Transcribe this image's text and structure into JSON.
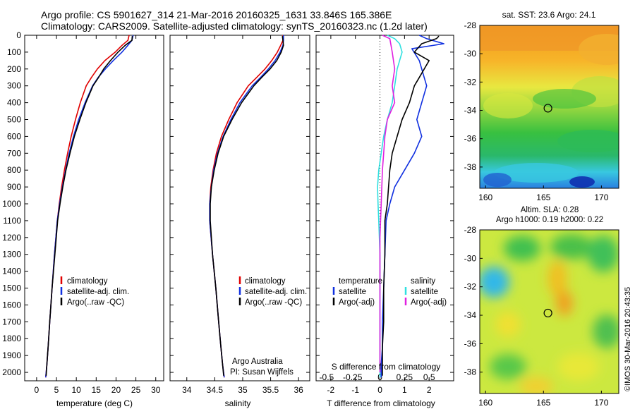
{
  "header": {
    "line1": "Argo profile: CS 5901627_314 21-Mar-2016 20160325_1631 33.846S 165.386E",
    "line2": "Climatology: CARS2009. Satellite-adjusted climatology: synTS_20160323.nc (1.2d later)"
  },
  "colors": {
    "climatology": "#e00000",
    "satellite": "#1030e0",
    "argo": "#000000",
    "salinity_satellite": "#30e0e0",
    "salinity_argo": "#e020e0"
  },
  "panels": {
    "temperature": {
      "xlabel": "temperature (deg C)",
      "legend": [
        "climatology",
        "satellite-adj. clim.",
        "Argo(..raw -QC)"
      ]
    },
    "salinity": {
      "xlabel": "salinity",
      "legend": [
        "climatology",
        "satellite-adj. clim.",
        "Argo(..raw -QC)"
      ],
      "credit1": "Argo Australia",
      "credit2": "PI: Susan Wijffels"
    },
    "difference": {
      "xlabel": "T difference from climatology",
      "top_label": "S difference from climatology",
      "legend_head_t": "temperature",
      "legend_head_s": "salinity",
      "legend_t": [
        "satellite",
        "Argo(-adj)"
      ],
      "legend_s": [
        "satellite",
        "Argo(-adj)"
      ]
    },
    "sst_map": {
      "title": "sat. SST: 23.6 Argo: 24.1"
    },
    "sla_map": {
      "title1": "Altim. SLA: 0.28",
      "title2": "Argo h1000: 0.19 h2000: 0.22"
    }
  },
  "stamp": "©IMOS 30-Mar-2016 20:43:35",
  "chart_data": [
    {
      "type": "line",
      "xlabel": "temperature (deg C)",
      "ylabel": "",
      "xlim": [
        -3,
        32
      ],
      "ylim": [
        2050,
        0
      ],
      "xticks": [
        0,
        5,
        10,
        15,
        20,
        25,
        30
      ],
      "yticks": [
        0,
        100,
        200,
        300,
        400,
        500,
        600,
        700,
        800,
        900,
        1000,
        1100,
        1200,
        1300,
        1400,
        1500,
        1600,
        1700,
        1800,
        1900,
        2000
      ],
      "series": [
        {
          "name": "climatology",
          "color": "#e00000",
          "x": [
            23.3,
            23.0,
            21.5,
            19.8,
            17.2,
            15.3,
            13.8,
            12.5,
            11.0,
            9.8,
            8.7,
            7.8,
            7.0,
            6.3,
            5.7,
            5.2,
            4.5,
            3.9,
            3.3,
            2.9,
            2.6,
            2.3
          ],
          "y": [
            0,
            30,
            60,
            100,
            150,
            200,
            250,
            300,
            400,
            500,
            600,
            700,
            800,
            900,
            1000,
            1100,
            1300,
            1500,
            1700,
            1850,
            1950,
            2030
          ]
        },
        {
          "name": "satellite-adj. clim.",
          "color": "#1030e0",
          "x": [
            24.3,
            24.0,
            23.0,
            21.5,
            19.3,
            17.3,
            15.5,
            14.1,
            12.2,
            10.6,
            9.3,
            8.2,
            7.3,
            6.5,
            5.8,
            5.2,
            4.5,
            3.9,
            3.3,
            2.9,
            2.6,
            2.3
          ],
          "y": [
            0,
            30,
            60,
            100,
            150,
            200,
            250,
            300,
            400,
            500,
            600,
            700,
            800,
            900,
            1000,
            1100,
            1300,
            1500,
            1700,
            1850,
            1950,
            2030
          ]
        },
        {
          "name": "Argo(..raw -QC)",
          "color": "#000000",
          "x": [
            24.1,
            24.0,
            22.3,
            20.5,
            18.6,
            16.9,
            15.6,
            14.2,
            12.4,
            10.9,
            9.5,
            8.4,
            7.4,
            6.6,
            5.9,
            5.3,
            4.6,
            3.9,
            3.3,
            2.9,
            2.6,
            2.4
          ],
          "y": [
            5,
            30,
            60,
            100,
            150,
            200,
            250,
            300,
            400,
            500,
            600,
            700,
            800,
            900,
            1000,
            1100,
            1300,
            1500,
            1700,
            1850,
            1950,
            2020
          ]
        }
      ]
    },
    {
      "type": "line",
      "xlabel": "salinity",
      "xlim": [
        33.7,
        36.2
      ],
      "ylim": [
        2050,
        0
      ],
      "xticks": [
        34,
        34.5,
        35,
        35.5,
        36
      ],
      "series": [
        {
          "name": "climatology",
          "color": "#e00000",
          "x": [
            35.72,
            35.72,
            35.68,
            35.62,
            35.52,
            35.4,
            35.25,
            35.1,
            34.9,
            34.75,
            34.62,
            34.53,
            34.47,
            34.43,
            34.41,
            34.41,
            34.46,
            34.52,
            34.57,
            34.61,
            34.64,
            34.67
          ],
          "y": [
            0,
            30,
            60,
            100,
            150,
            200,
            250,
            300,
            400,
            500,
            600,
            700,
            800,
            900,
            1000,
            1100,
            1300,
            1500,
            1700,
            1850,
            1950,
            2030
          ]
        },
        {
          "name": "satellite-adj. clim.",
          "color": "#1030e0",
          "x": [
            35.73,
            35.73,
            35.72,
            35.67,
            35.58,
            35.46,
            35.32,
            35.17,
            34.95,
            34.79,
            34.65,
            34.55,
            34.48,
            34.44,
            34.41,
            34.41,
            34.46,
            34.52,
            34.57,
            34.61,
            34.64,
            34.67
          ],
          "y": [
            0,
            30,
            60,
            100,
            150,
            200,
            250,
            300,
            400,
            500,
            600,
            700,
            800,
            900,
            1000,
            1100,
            1300,
            1500,
            1700,
            1850,
            1950,
            2030
          ]
        },
        {
          "name": "Argo(..raw -QC)",
          "color": "#000000",
          "x": [
            35.71,
            35.72,
            35.73,
            35.69,
            35.61,
            35.49,
            35.34,
            35.2,
            34.98,
            34.81,
            34.66,
            34.56,
            34.49,
            34.44,
            34.42,
            34.42,
            34.46,
            34.52,
            34.57,
            34.61,
            34.64,
            34.66
          ],
          "y": [
            5,
            30,
            60,
            100,
            150,
            200,
            250,
            300,
            400,
            500,
            600,
            700,
            800,
            900,
            1000,
            1100,
            1300,
            1500,
            1700,
            1850,
            1950,
            2020
          ]
        }
      ]
    },
    {
      "type": "line",
      "xlabel": "T difference from climatology",
      "xlim": [
        -2.6,
        3.0
      ],
      "ylim": [
        2050,
        0
      ],
      "xticks": [
        -2,
        -1,
        0,
        1,
        2
      ],
      "top_ticks": [
        "-0.5",
        "-0.25",
        "0",
        "0.25",
        "0.5"
      ],
      "series": [
        {
          "name": "satellite",
          "color": "#1030e0",
          "x": [
            1.6,
            1.9,
            2.6,
            1.3,
            1.6,
            1.8,
            1.9,
            1.7,
            1.5,
            1.7,
            1.4,
            1.0,
            0.6,
            0.4,
            0.25,
            0.2,
            0.15,
            0.1,
            0.1,
            0.05,
            0.05
          ],
          "y": [
            0,
            20,
            50,
            80,
            150,
            250,
            300,
            400,
            500,
            600,
            700,
            800,
            900,
            1000,
            1100,
            1300,
            1500,
            1700,
            1850,
            1950,
            2030
          ]
        },
        {
          "name": "Argo(-adj)",
          "color": "#000000",
          "x": [
            2.4,
            2.3,
            1.7,
            1.4,
            2.0,
            1.6,
            1.4,
            1.2,
            0.9,
            0.7,
            0.5,
            0.4,
            0.35,
            0.3,
            0.2,
            0.2,
            0.15,
            0.15,
            0.1,
            0.1
          ],
          "y": [
            5,
            20,
            50,
            100,
            150,
            250,
            300,
            400,
            500,
            600,
            700,
            800,
            900,
            1000,
            1100,
            1300,
            1500,
            1700,
            1850,
            2020
          ]
        },
        {
          "name": "salinity satellite",
          "color": "#30e0e0",
          "x": [
            0.3,
            0.6,
            0.8,
            0.9,
            0.7,
            0.6,
            0.5,
            0.3,
            0.15,
            0.05,
            -0.05,
            -0.1,
            -0.08,
            -0.05,
            0.0,
            0.0,
            0.0,
            0.0,
            0.0
          ],
          "y": [
            0,
            20,
            50,
            100,
            200,
            300,
            400,
            500,
            600,
            700,
            800,
            900,
            1000,
            1100,
            1300,
            1500,
            1700,
            1850,
            2030
          ]
        },
        {
          "name": "salinity Argo(-adj)",
          "color": "#e020e0",
          "x": [
            0.1,
            0.4,
            0.5,
            0.6,
            0.5,
            0.6,
            0.3,
            0.2,
            0.15,
            0.1,
            0.05,
            0.0,
            0.0,
            0.0,
            0.0,
            0.0
          ],
          "y": [
            0,
            20,
            100,
            200,
            300,
            400,
            500,
            600,
            700,
            800,
            1000,
            1200,
            1400,
            1600,
            1800,
            2000
          ]
        }
      ]
    },
    {
      "type": "heatmap",
      "title": "sat. SST: 23.6 Argo: 24.1",
      "xlim": [
        159.5,
        171.5
      ],
      "ylim": [
        -39.5,
        -28
      ],
      "xticks": [
        160,
        165,
        170
      ],
      "yticks": [
        -28,
        -30,
        -32,
        -34,
        -36,
        -38
      ],
      "marker": {
        "lon": 165.386,
        "lat": -33.846
      }
    },
    {
      "type": "heatmap",
      "title": "Altim. SLA: 0.28",
      "subtitle": "Argo h1000: 0.19 h2000: 0.22",
      "xlim": [
        159.5,
        171.5
      ],
      "ylim": [
        -39.5,
        -28
      ],
      "xticks": [
        160,
        165,
        170
      ],
      "yticks": [
        -28,
        -30,
        -32,
        -34,
        -36,
        -38
      ],
      "marker": {
        "lon": 165.386,
        "lat": -33.846
      }
    }
  ]
}
